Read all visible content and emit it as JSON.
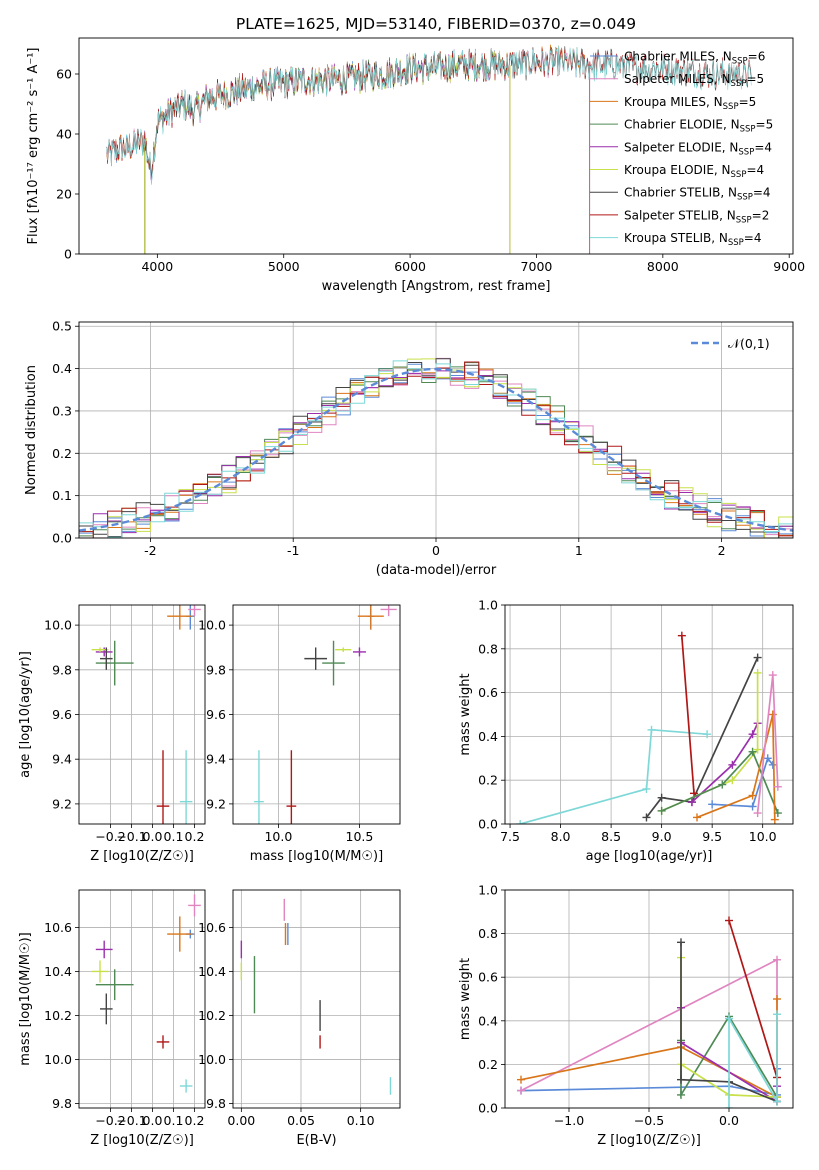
{
  "figure_title": "PLATE=1625, MJD=53140, FIBERID=0370, z=0.049",
  "chart_data": [
    {
      "id": "spectrum",
      "type": "line",
      "title": "PLATE=1625, MJD=53140, FIBERID=0370, z=0.049",
      "xlabel": "wavelength [Angstrom, rest frame]",
      "ylabel": "Flux [fλ10⁻¹⁷ erg cm⁻² s⁻¹ A⁻¹]",
      "xlim": [
        3380,
        9030
      ],
      "ylim": [
        0,
        72
      ],
      "xticks": [
        4000,
        5000,
        6000,
        7000,
        8000,
        9000
      ],
      "yticks": [
        0,
        20,
        40,
        60
      ],
      "grid": false,
      "legend": "top-right",
      "continuum": {
        "x": [
          3600,
          3700,
          3800,
          3900,
          3950,
          4000,
          4100,
          4200,
          4300,
          4400,
          4600,
          4800,
          5000,
          5200,
          5400,
          5600,
          5800,
          6000,
          6200,
          6400,
          6600,
          6800,
          7000,
          7200,
          7400,
          7600,
          7800,
          8000,
          8200,
          8400,
          8600,
          8700
        ],
        "y": [
          33,
          35,
          36,
          38,
          27,
          44,
          47,
          50,
          48,
          52,
          54,
          56,
          57,
          58,
          58,
          59,
          60,
          62,
          62,
          63,
          63,
          63,
          64,
          64,
          63,
          63,
          62,
          62,
          61,
          60,
          60,
          60
        ]
      },
      "series": [
        {
          "name": "Chabrier MILES, NSSP=6",
          "color": "#5b8bd8",
          "x_range": [
            3600,
            7420
          ]
        },
        {
          "name": "Salpeter MILES, NSSP=5",
          "color": "#e085c0",
          "x_range": [
            3600,
            7420
          ]
        },
        {
          "name": "Kroupa MILES, NSSP=5",
          "color": "#d9761a",
          "x_range": [
            3600,
            7420
          ]
        },
        {
          "name": "Chabrier ELODIE, NSSP=5",
          "color": "#4f8a55",
          "x_range": [
            3900,
            6790
          ]
        },
        {
          "name": "Salpeter ELODIE, NSSP=4",
          "color": "#9b2fae",
          "x_range": [
            3900,
            6790
          ]
        },
        {
          "name": "Kroupa ELODIE, NSSP=4",
          "color": "#c8e04a",
          "x_range": [
            3900,
            6790
          ]
        },
        {
          "name": "Chabrier STELIB, NSSP=4",
          "color": "#444444",
          "x_range": [
            3600,
            8700
          ]
        },
        {
          "name": "Salpeter STELIB, NSSP=2",
          "color": "#b01818",
          "x_range": [
            3600,
            8700
          ]
        },
        {
          "name": "Kroupa STELIB, NSSP=4",
          "color": "#7fd8d8",
          "x_range": [
            3600,
            8700
          ]
        }
      ]
    },
    {
      "id": "residuals",
      "type": "step",
      "xlabel": "(data-model)/error",
      "ylabel": "Normed distribution",
      "xlim": [
        -2.5,
        2.5
      ],
      "ylim": [
        0,
        0.51
      ],
      "xticks": [
        -2,
        -1,
        0,
        1,
        2
      ],
      "yticks": [
        0.0,
        0.1,
        0.2,
        0.3,
        0.4,
        0.5
      ],
      "grid": true,
      "legend": "top-right",
      "reference": {
        "name": "𝒩(0,1)",
        "color": "#5b8bd8",
        "style": "dashed",
        "mu": 0,
        "sigma": 1
      },
      "bin_width": 0.1
    },
    {
      "id": "age_vs_Z",
      "type": "scatter",
      "xlabel": "Z [log10(Z/Z☉)]",
      "ylabel": "age  [log10(age/yr)]",
      "xlim": [
        -0.35,
        0.25
      ],
      "ylim": [
        9.11,
        10.09
      ],
      "xticks": [
        -0.2,
        -0.1,
        0.0,
        0.1,
        0.2
      ],
      "xtick_labels": [
        "−0.2",
        "−0.1",
        "0.0",
        "0.1",
        "0.2"
      ],
      "yticks": [
        9.2,
        9.4,
        9.6,
        9.8,
        10.0
      ],
      "grid": true,
      "points": [
        {
          "series": "Chabrier MILES",
          "color": "#5b8bd8",
          "x": 0.18,
          "y": 10.04,
          "dx": 0.02,
          "dy": 0.06
        },
        {
          "series": "Salpeter MILES",
          "color": "#e085c0",
          "x": 0.2,
          "y": 10.07,
          "dx": 0.03,
          "dy": 0.03
        },
        {
          "series": "Kroupa MILES",
          "color": "#d9761a",
          "x": 0.13,
          "y": 10.04,
          "dx": 0.06,
          "dy": 0.06
        },
        {
          "series": "Chabrier ELODIE",
          "color": "#4f8a55",
          "x": -0.18,
          "y": 9.83,
          "dx": 0.09,
          "dy": 0.1
        },
        {
          "series": "Salpeter ELODIE",
          "color": "#9b2fae",
          "x": -0.23,
          "y": 9.88,
          "dx": 0.04,
          "dy": 0.02
        },
        {
          "series": "Kroupa ELODIE",
          "color": "#c8e04a",
          "x": -0.25,
          "y": 9.89,
          "dx": 0.04,
          "dy": 0.01
        },
        {
          "series": "Chabrier STELIB",
          "color": "#444444",
          "x": -0.22,
          "y": 9.85,
          "dx": 0.03,
          "dy": 0.05
        },
        {
          "series": "Salpeter STELIB",
          "color": "#b01818",
          "x": 0.05,
          "y": 9.19,
          "dx": 0.03,
          "dy": 0.25
        },
        {
          "series": "Kroupa STELIB",
          "color": "#7fd8d8",
          "x": 0.16,
          "y": 9.21,
          "dx": 0.03,
          "dy": 0.23
        }
      ]
    },
    {
      "id": "age_vs_mass",
      "type": "scatter",
      "xlabel": "mass [log10(M/M☉)]",
      "ylabel": "",
      "xlim": [
        9.72,
        10.75
      ],
      "ylim": [
        9.11,
        10.09
      ],
      "xticks": [
        10.0,
        10.5
      ],
      "xtick_labels": [
        "10.0",
        "10.5"
      ],
      "yticks": [
        9.2,
        9.4,
        9.6,
        9.8,
        10.0
      ],
      "grid": true,
      "points": [
        {
          "series": "Chabrier MILES",
          "color": "#5b8bd8",
          "x": 10.57,
          "y": 10.04,
          "dx": 0.02,
          "dy": 0.06
        },
        {
          "series": "Salpeter MILES",
          "color": "#e085c0",
          "x": 10.68,
          "y": 10.07,
          "dx": 0.05,
          "dy": 0.03
        },
        {
          "series": "Kroupa MILES",
          "color": "#d9761a",
          "x": 10.57,
          "y": 10.04,
          "dx": 0.08,
          "dy": 0.06
        },
        {
          "series": "Chabrier ELODIE",
          "color": "#4f8a55",
          "x": 10.34,
          "y": 9.83,
          "dx": 0.07,
          "dy": 0.1
        },
        {
          "series": "Salpeter ELODIE",
          "color": "#9b2fae",
          "x": 10.5,
          "y": 9.88,
          "dx": 0.04,
          "dy": 0.02
        },
        {
          "series": "Kroupa ELODIE",
          "color": "#c8e04a",
          "x": 10.4,
          "y": 9.89,
          "dx": 0.05,
          "dy": 0.01
        },
        {
          "series": "Chabrier STELIB",
          "color": "#444444",
          "x": 10.23,
          "y": 9.85,
          "dx": 0.07,
          "dy": 0.05
        },
        {
          "series": "Salpeter STELIB",
          "color": "#b01818",
          "x": 10.08,
          "y": 9.19,
          "dx": 0.03,
          "dy": 0.25
        },
        {
          "series": "Kroupa STELIB",
          "color": "#7fd8d8",
          "x": 9.88,
          "y": 9.21,
          "dx": 0.03,
          "dy": 0.23
        }
      ]
    },
    {
      "id": "weight_vs_age",
      "type": "line",
      "xlabel": "age  [log10(age/yr)]",
      "ylabel": "mass weight",
      "xlim": [
        7.45,
        10.3
      ],
      "ylim": [
        0,
        1
      ],
      "xticks": [
        7.5,
        8.0,
        8.5,
        9.0,
        9.5,
        10.0
      ],
      "xtick_labels": [
        "7.5",
        "8.0",
        "8.5",
        "9.0",
        "9.5",
        "10.0"
      ],
      "yticks": [
        0.0,
        0.2,
        0.4,
        0.6,
        0.8,
        1.0
      ],
      "grid": true,
      "series": [
        {
          "series": "Kroupa STELIB",
          "color": "#7fd8d8",
          "x": [
            7.6,
            8.85,
            8.9,
            9.45
          ],
          "y": [
            0.0,
            0.16,
            0.43,
            0.41
          ]
        },
        {
          "series": "Chabrier STELIB",
          "color": "#444444",
          "x": [
            8.85,
            9.0,
            9.3,
            9.95
          ],
          "y": [
            0.03,
            0.12,
            0.1,
            0.76
          ]
        },
        {
          "series": "Salpeter STELIB",
          "color": "#b01818",
          "x": [
            9.2,
            9.32
          ],
          "y": [
            0.86,
            0.14
          ]
        },
        {
          "series": "Salpeter ELODIE",
          "color": "#9b2fae",
          "x": [
            9.3,
            9.7,
            9.9,
            9.95
          ],
          "y": [
            0.1,
            0.27,
            0.41,
            0.46
          ]
        },
        {
          "series": "Kroupa ELODIE",
          "color": "#c8e04a",
          "x": [
            9.0,
            9.7,
            9.95,
            9.95
          ],
          "y": [
            0.06,
            0.2,
            0.34,
            0.69
          ]
        },
        {
          "series": "Chabrier ELODIE",
          "color": "#4f8a55",
          "x": [
            9.0,
            9.6,
            9.9,
            10.15
          ],
          "y": [
            0.06,
            0.18,
            0.33,
            0.05
          ]
        },
        {
          "series": "Chabrier MILES",
          "color": "#5b8bd8",
          "x": [
            9.5,
            9.9,
            10.05,
            10.1
          ],
          "y": [
            0.09,
            0.08,
            0.3,
            0.27
          ]
        },
        {
          "series": "Kroupa MILES",
          "color": "#d9761a",
          "x": [
            9.35,
            9.9,
            10.1,
            10.12
          ],
          "y": [
            0.03,
            0.13,
            0.5,
            0.02
          ]
        },
        {
          "series": "Salpeter MILES",
          "color": "#e085c0",
          "x": [
            9.95,
            10.1,
            10.15
          ],
          "y": [
            0.05,
            0.68,
            0.17
          ]
        }
      ]
    },
    {
      "id": "mass_vs_Z",
      "type": "scatter",
      "xlabel": "Z [log10(Z/Z☉)]",
      "ylabel": "mass [log10(M/M☉)]",
      "xlim": [
        -0.35,
        0.25
      ],
      "ylim": [
        9.78,
        10.77
      ],
      "xticks": [
        -0.2,
        -0.1,
        0.0,
        0.1,
        0.2
      ],
      "xtick_labels": [
        "−0.2",
        "−0.1",
        "0.0",
        "0.1",
        "0.2"
      ],
      "yticks": [
        9.8,
        10.0,
        10.2,
        10.4,
        10.6
      ],
      "grid": true,
      "points": [
        {
          "series": "Chabrier MILES",
          "color": "#5b8bd8",
          "x": 0.18,
          "y": 10.57,
          "dx": 0.02,
          "dy": 0.02
        },
        {
          "series": "Salpeter MILES",
          "color": "#e085c0",
          "x": 0.2,
          "y": 10.7,
          "dx": 0.03,
          "dy": 0.05
        },
        {
          "series": "Kroupa MILES",
          "color": "#d9761a",
          "x": 0.13,
          "y": 10.57,
          "dx": 0.06,
          "dy": 0.08
        },
        {
          "series": "Chabrier ELODIE",
          "color": "#4f8a55",
          "x": -0.18,
          "y": 10.34,
          "dx": 0.09,
          "dy": 0.07
        },
        {
          "series": "Salpeter ELODIE",
          "color": "#9b2fae",
          "x": -0.23,
          "y": 10.5,
          "dx": 0.04,
          "dy": 0.04
        },
        {
          "series": "Kroupa ELODIE",
          "color": "#c8e04a",
          "x": -0.25,
          "y": 10.4,
          "dx": 0.04,
          "dy": 0.05
        },
        {
          "series": "Chabrier STELIB",
          "color": "#444444",
          "x": -0.22,
          "y": 10.23,
          "dx": 0.03,
          "dy": 0.07
        },
        {
          "series": "Salpeter STELIB",
          "color": "#b01818",
          "x": 0.05,
          "y": 10.08,
          "dx": 0.03,
          "dy": 0.03
        },
        {
          "series": "Kroupa STELIB",
          "color": "#7fd8d8",
          "x": 0.16,
          "y": 9.88,
          "dx": 0.03,
          "dy": 0.03
        }
      ]
    },
    {
      "id": "mass_vs_ebv",
      "type": "scatter",
      "xlabel": "E(B-V)",
      "ylabel": "",
      "xlim": [
        -0.007,
        0.133
      ],
      "ylim": [
        9.78,
        10.77
      ],
      "xticks": [
        0.0,
        0.05,
        0.1
      ],
      "xtick_labels": [
        "0.00",
        "0.05",
        "0.10"
      ],
      "yticks": [
        9.8,
        10.0,
        10.2,
        10.4,
        10.6
      ],
      "grid": true,
      "points": [
        {
          "series": "Chabrier MILES",
          "color": "#5b8bd8",
          "x": 0.039,
          "y": 10.57,
          "dx": 0.0,
          "dy": 0.05
        },
        {
          "series": "Salpeter MILES",
          "color": "#e085c0",
          "x": 0.036,
          "y": 10.68,
          "dx": 0.0,
          "dy": 0.05
        },
        {
          "series": "Kroupa MILES",
          "color": "#d9761a",
          "x": 0.037,
          "y": 10.57,
          "dx": 0.0,
          "dy": 0.05
        },
        {
          "series": "Chabrier ELODIE",
          "color": "#4f8a55",
          "x": 0.011,
          "y": 10.34,
          "dx": 0.0,
          "dy": 0.13
        },
        {
          "series": "Salpeter ELODIE",
          "color": "#9b2fae",
          "x": 0.0,
          "y": 10.5,
          "dx": 0.0,
          "dy": 0.04
        },
        {
          "series": "Kroupa ELODIE",
          "color": "#c8e04a",
          "x": 0.0,
          "y": 10.4,
          "dx": 0.0,
          "dy": 0.04
        },
        {
          "series": "Chabrier STELIB",
          "color": "#444444",
          "x": 0.066,
          "y": 10.2,
          "dx": 0.0,
          "dy": 0.07
        },
        {
          "series": "Salpeter STELIB",
          "color": "#b01818",
          "x": 0.066,
          "y": 10.08,
          "dx": 0.0,
          "dy": 0.03
        },
        {
          "series": "Kroupa STELIB",
          "color": "#7fd8d8",
          "x": 0.125,
          "y": 9.88,
          "dx": 0.0,
          "dy": 0.04
        }
      ]
    },
    {
      "id": "weight_vs_Z",
      "type": "line",
      "xlabel": "Z [log10(Z/Z☉)]",
      "ylabel": "mass weight",
      "xlim": [
        -1.4,
        0.4
      ],
      "ylim": [
        0,
        1
      ],
      "xticks": [
        -1.0,
        -0.5,
        0.0
      ],
      "xtick_labels": [
        "−1.0",
        "−0.5",
        "0.0"
      ],
      "yticks": [
        0.0,
        0.2,
        0.4,
        0.6,
        0.8,
        1.0
      ],
      "grid": true,
      "series": [
        {
          "series": "Chabrier MILES",
          "color": "#5b8bd8",
          "x": [
            -1.3,
            0.0,
            0.3,
            0.3
          ],
          "y": [
            0.08,
            0.1,
            0.06,
            0.18
          ]
        },
        {
          "series": "Salpeter MILES",
          "color": "#e085c0",
          "x": [
            -1.3,
            0.3,
            0.3
          ],
          "y": [
            0.08,
            0.68,
            0.05
          ]
        },
        {
          "series": "Kroupa MILES",
          "color": "#d9761a",
          "x": [
            -1.3,
            -0.3,
            0.3,
            0.3
          ],
          "y": [
            0.13,
            0.28,
            0.05,
            0.5
          ]
        },
        {
          "series": "Chabrier ELODIE",
          "color": "#4f8a55",
          "x": [
            -0.3,
            -0.3,
            0.0,
            0.3
          ],
          "y": [
            0.31,
            0.06,
            0.42,
            0.05
          ]
        },
        {
          "series": "Salpeter ELODIE",
          "color": "#9b2fae",
          "x": [
            -0.3,
            -0.3,
            0.3,
            0.3
          ],
          "y": [
            0.46,
            0.3,
            0.03,
            0.1
          ]
        },
        {
          "series": "Kroupa ELODIE",
          "color": "#c8e04a",
          "x": [
            -0.3,
            -0.3,
            0.0,
            0.3
          ],
          "y": [
            0.69,
            0.2,
            0.06,
            0.05
          ]
        },
        {
          "series": "Chabrier STELIB",
          "color": "#444444",
          "x": [
            -0.3,
            -0.3,
            0.0,
            0.3
          ],
          "y": [
            0.76,
            0.13,
            0.12,
            0.03
          ]
        },
        {
          "series": "Salpeter STELIB",
          "color": "#b01818",
          "x": [
            0.0,
            0.3
          ],
          "y": [
            0.86,
            0.14
          ]
        },
        {
          "series": "Kroupa STELIB",
          "color": "#7fd8d8",
          "x": [
            0.0,
            0.0,
            0.3,
            0.3
          ],
          "y": [
            0.0,
            0.41,
            0.03,
            0.43
          ]
        }
      ]
    }
  ]
}
